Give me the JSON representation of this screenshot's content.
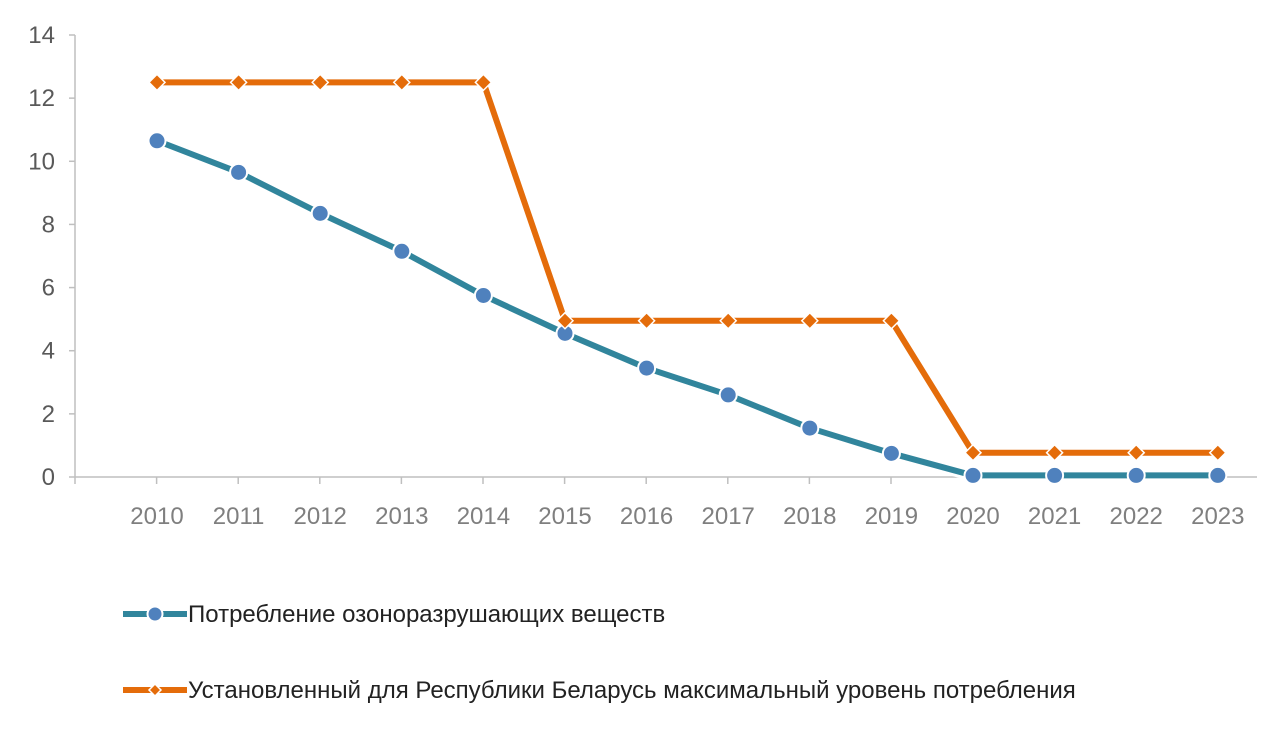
{
  "chart_data": {
    "type": "line",
    "categories": [
      "2010",
      "2011",
      "2012",
      "2013",
      "2014",
      "2015",
      "2016",
      "2017",
      "2018",
      "2019",
      "2020",
      "2021",
      "2022",
      "2023"
    ],
    "ylim": [
      0,
      14
    ],
    "yticks": [
      0,
      2,
      4,
      6,
      8,
      10,
      12,
      14
    ],
    "grid": false,
    "legend_position": "bottom",
    "series": [
      {
        "name": "Потребление озоноразрушающих веществ",
        "color": "#31859C",
        "marker": "circle",
        "marker_color": "#4F81BD",
        "values": [
          10.65,
          9.65,
          8.35,
          7.15,
          5.75,
          4.55,
          3.45,
          2.6,
          1.55,
          0.75,
          0.05,
          0.05,
          0.05,
          0.05
        ]
      },
      {
        "name": "Установленный для Республики Беларусь максимальный уровень потребления",
        "color": "#E46C0A",
        "marker": "diamond",
        "marker_color": "#E46C0A",
        "values": [
          12.5,
          12.5,
          12.5,
          12.5,
          12.5,
          4.95,
          4.95,
          4.95,
          4.95,
          4.95,
          0.77,
          0.77,
          0.77,
          0.77
        ]
      }
    ]
  }
}
